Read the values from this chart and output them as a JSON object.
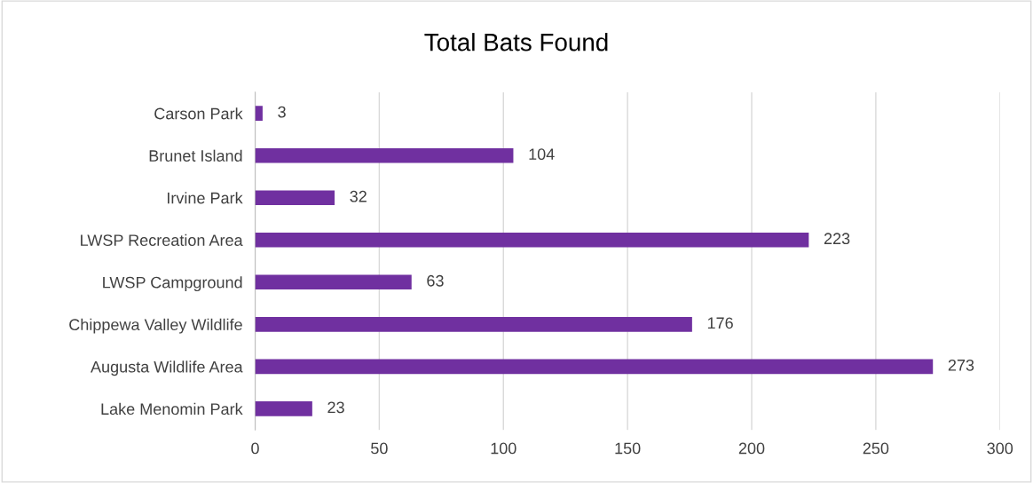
{
  "chart_data": {
    "type": "bar",
    "orientation": "horizontal",
    "title": "Total Bats Found",
    "categories": [
      "Carson Park",
      "Brunet Island",
      "Irvine Park",
      "LWSP Recreation Area",
      "LWSP Campground",
      "Chippewa Valley Wildlife",
      "Augusta Wildlife Area",
      "Lake Menomin Park"
    ],
    "values": [
      3,
      104,
      32,
      223,
      63,
      176,
      273,
      23
    ],
    "color": "#7030a0",
    "xlim": [
      0,
      300
    ],
    "xticks": [
      0,
      50,
      100,
      150,
      200,
      250,
      300
    ],
    "grid": "x",
    "data_labels": true
  }
}
